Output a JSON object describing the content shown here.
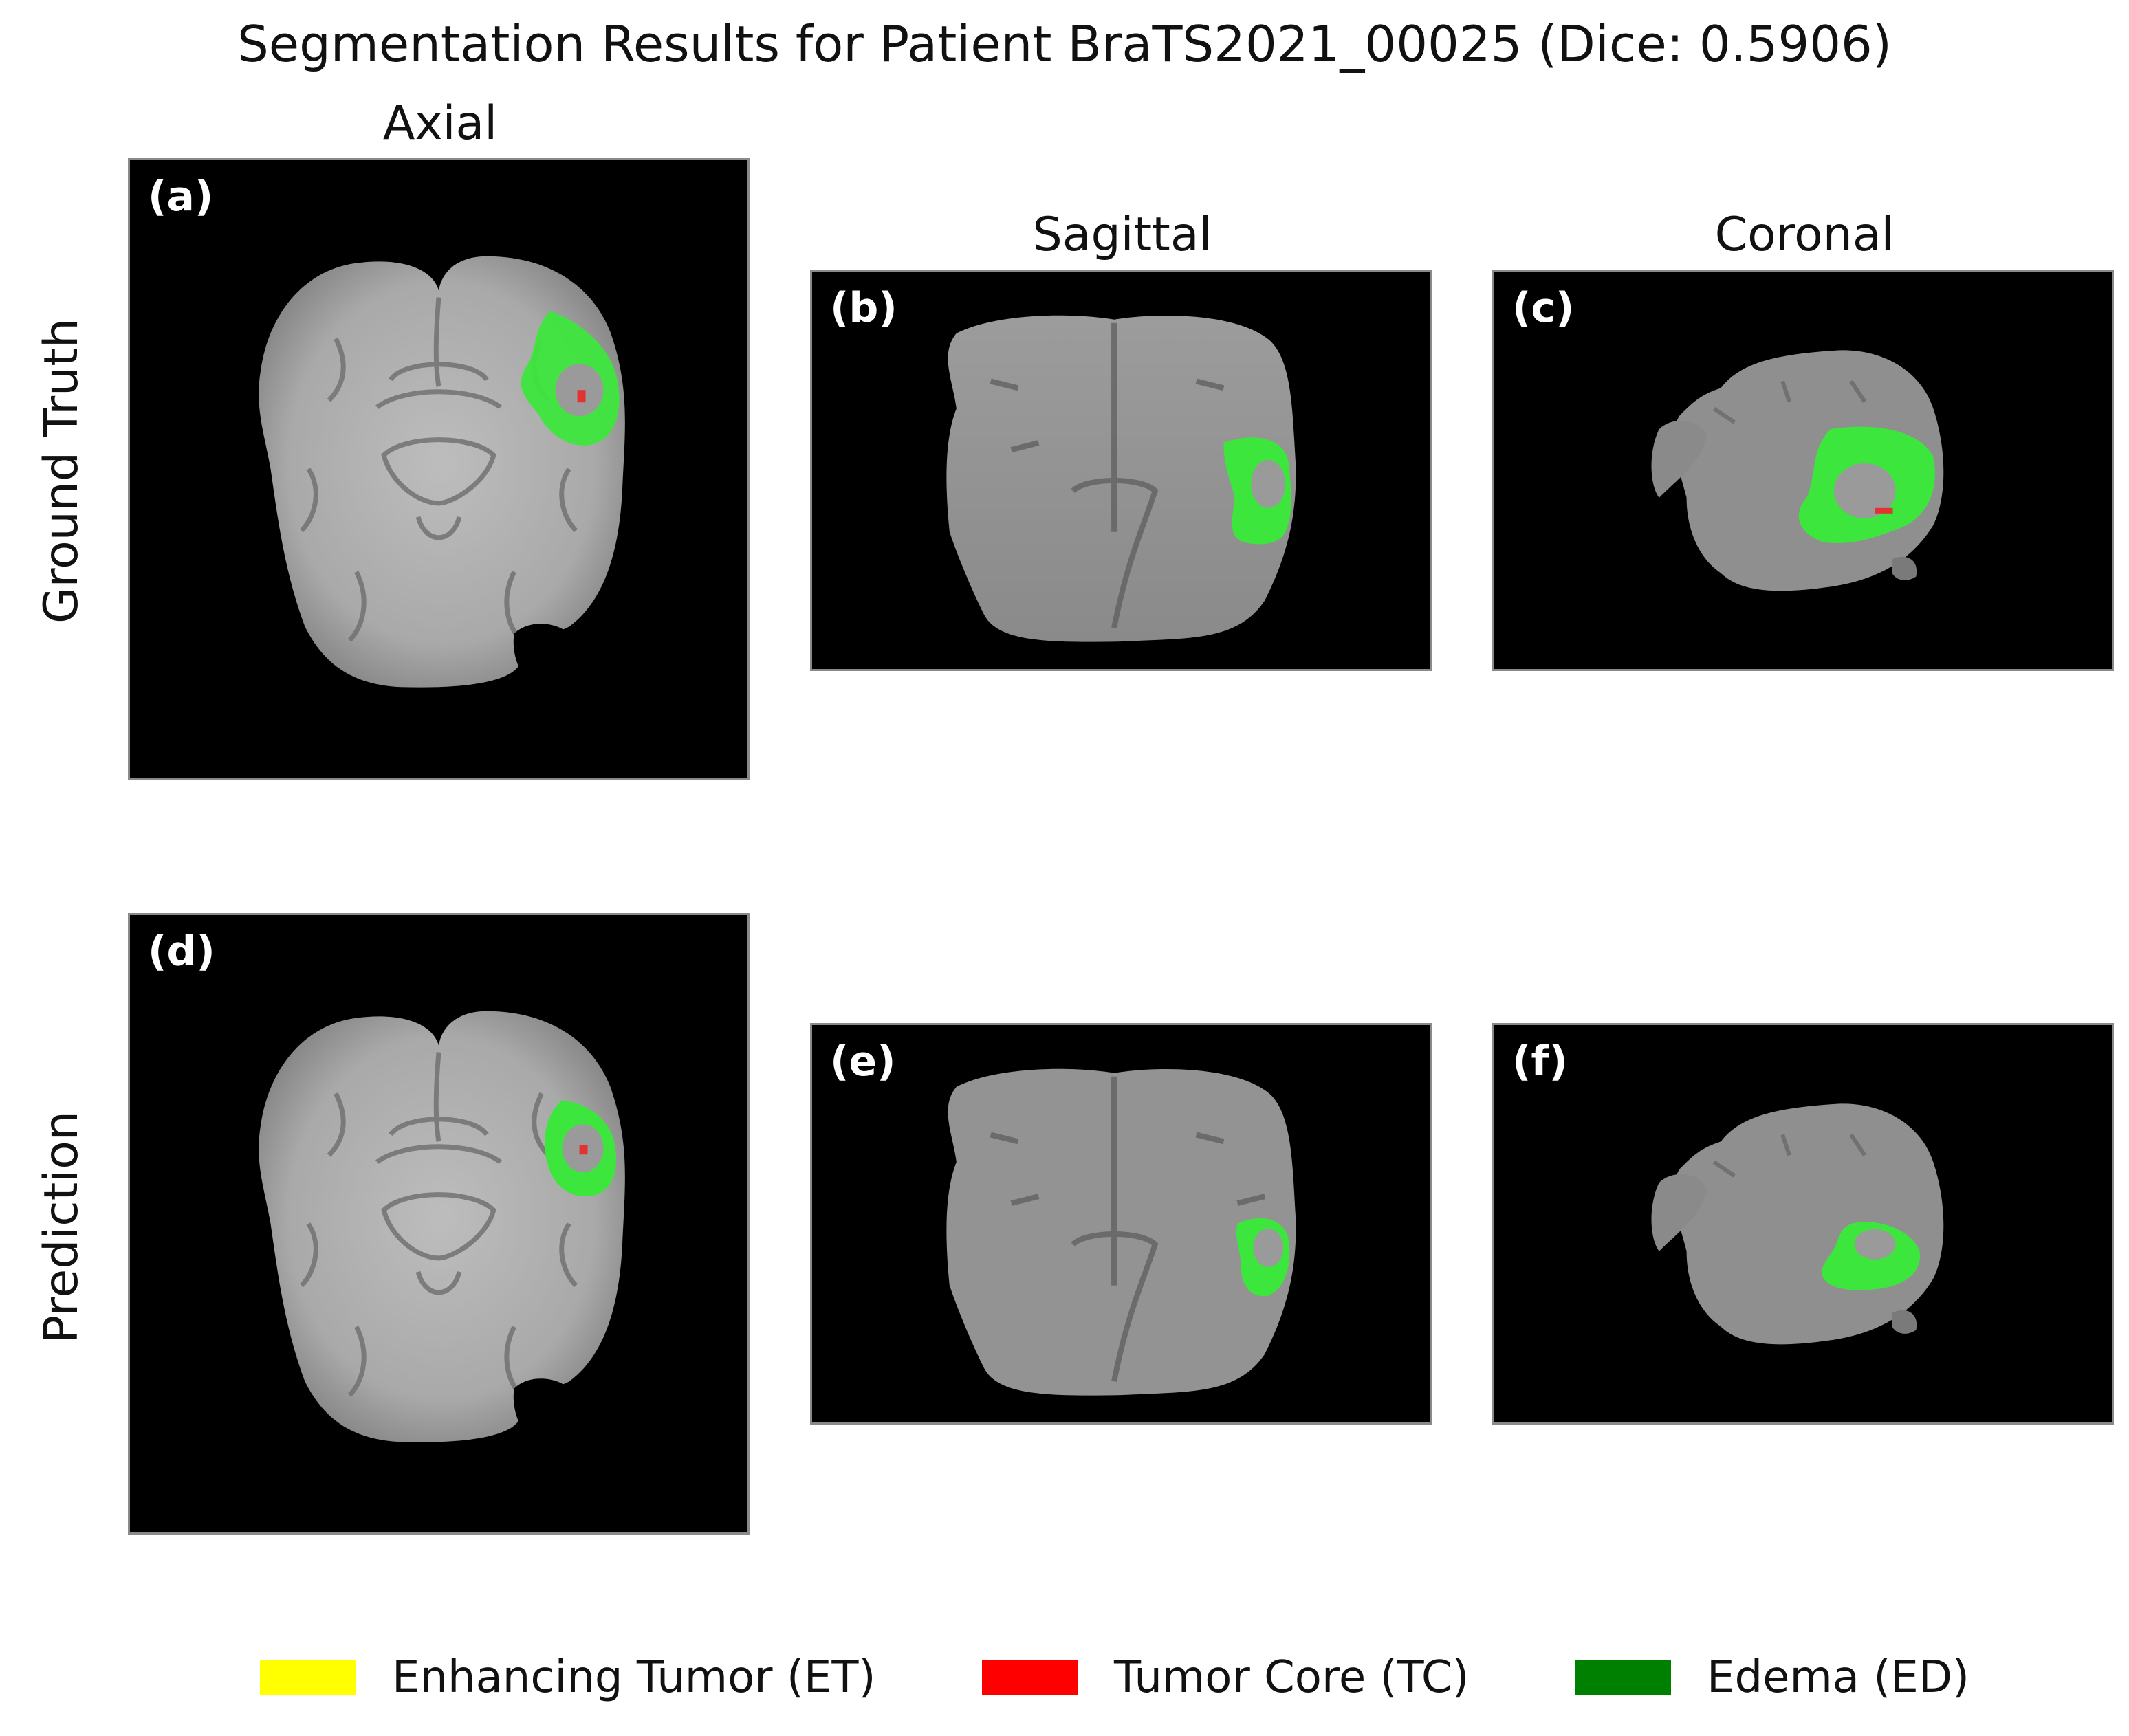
{
  "title": "Segmentation Results for Patient BraTS2021_00025 (Dice: 0.5906)",
  "columns": {
    "axial": "Axial",
    "sagittal": "Sagittal",
    "coronal": "Coronal"
  },
  "rows": {
    "top": "Ground Truth",
    "bottom": "Prediction"
  },
  "panels": {
    "a": "(a)",
    "b": "(b)",
    "c": "(c)",
    "d": "(d)",
    "e": "(e)",
    "f": "(f)"
  },
  "legend": [
    {
      "label": "Enhancing Tumor (ET)",
      "color": "#ffff00"
    },
    {
      "label": "Tumor Core (TC)",
      "color": "#ff0000"
    },
    {
      "label": "Edema (ED)",
      "color": "#008000"
    }
  ],
  "colors": {
    "overlay_edema": "#3de63d",
    "overlay_core": "#e23232",
    "background": "#000000"
  }
}
